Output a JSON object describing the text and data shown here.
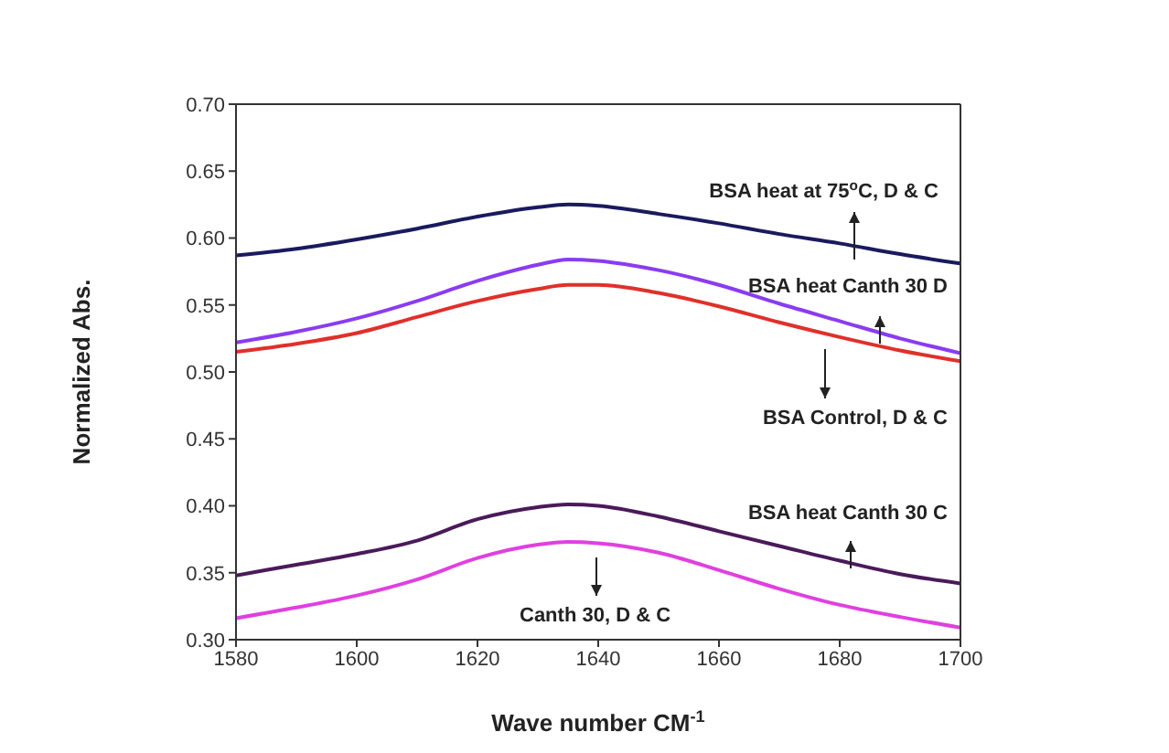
{
  "chart_data": {
    "type": "line",
    "xlabel": "Wave number CM$^{-1}$",
    "ylabel": "Normalized Abs.",
    "x": [
      1580,
      1590,
      1600,
      1610,
      1620,
      1630,
      1635,
      1640,
      1650,
      1660,
      1670,
      1680,
      1690,
      1700
    ],
    "xlim": [
      1580,
      1700
    ],
    "xticks": [
      1580,
      1600,
      1620,
      1640,
      1660,
      1680,
      1700
    ],
    "ylim": [
      0.3,
      0.7
    ],
    "yticks": [
      {
        "value": 0.3,
        "label": "0.30"
      },
      0.35,
      {
        "value": 0.4,
        "label": "0.40"
      },
      0.45,
      {
        "value": 0.5,
        "label": "0.50"
      },
      0.55,
      {
        "value": 0.6,
        "label": "0.60"
      },
      0.65,
      {
        "value": 0.7,
        "label": "0.70"
      }
    ],
    "marker": "none",
    "line_style": "solid",
    "series": [
      {
        "name": "BSA heat at 75$^{o}$C, D & C",
        "color": "#1a1a5e",
        "values": [
          0.587,
          0.592,
          0.599,
          0.607,
          0.616,
          0.623,
          0.625,
          0.624,
          0.618,
          0.611,
          0.603,
          0.596,
          0.588,
          0.581
        ]
      },
      {
        "name": "BSA heat Canth 30 D",
        "color": "#8a3cf0",
        "values": [
          0.522,
          0.53,
          0.54,
          0.553,
          0.568,
          0.58,
          0.584,
          0.583,
          0.576,
          0.565,
          0.551,
          0.538,
          0.525,
          0.514
        ]
      },
      {
        "name": "BSA Control, D & C",
        "color": "#e0302a",
        "values": [
          0.515,
          0.521,
          0.529,
          0.541,
          0.553,
          0.562,
          0.565,
          0.565,
          0.559,
          0.549,
          0.537,
          0.526,
          0.516,
          0.508
        ]
      },
      {
        "name": "BSA heat Canth 30 C",
        "color": "#4a1a5a",
        "values": [
          0.348,
          0.356,
          0.364,
          0.374,
          0.39,
          0.399,
          0.401,
          0.4,
          0.392,
          0.381,
          0.37,
          0.359,
          0.349,
          0.342
        ]
      },
      {
        "name": "Canth 30, D & C",
        "color": "#e040e0",
        "values": [
          0.316,
          0.324,
          0.333,
          0.345,
          0.361,
          0.371,
          0.373,
          0.372,
          0.365,
          0.352,
          0.338,
          0.326,
          0.317,
          0.309
        ]
      }
    ]
  }
}
